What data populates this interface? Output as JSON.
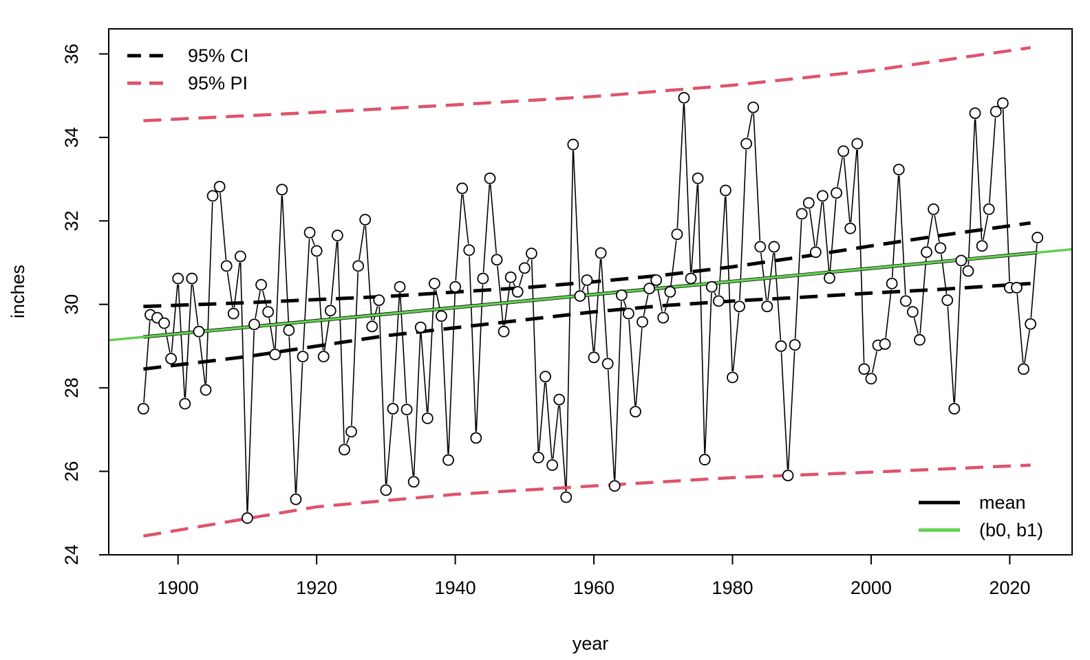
{
  "chart_data": {
    "type": "line",
    "xlabel": "year",
    "ylabel": "inches",
    "xlim": [
      1890,
      2029
    ],
    "ylim": [
      24,
      36.6
    ],
    "x_ticks": [
      1900,
      1920,
      1940,
      1960,
      1980,
      2000,
      2020
    ],
    "y_ticks": [
      24,
      26,
      28,
      30,
      32,
      34,
      36
    ],
    "grid": false,
    "x": [
      1895,
      1896,
      1897,
      1898,
      1899,
      1900,
      1901,
      1902,
      1903,
      1904,
      1905,
      1906,
      1907,
      1908,
      1909,
      1910,
      1911,
      1912,
      1913,
      1914,
      1915,
      1916,
      1917,
      1918,
      1919,
      1920,
      1921,
      1922,
      1923,
      1924,
      1925,
      1926,
      1927,
      1928,
      1929,
      1930,
      1931,
      1932,
      1933,
      1934,
      1935,
      1936,
      1937,
      1938,
      1939,
      1940,
      1941,
      1942,
      1943,
      1944,
      1945,
      1946,
      1947,
      1948,
      1949,
      1950,
      1951,
      1952,
      1953,
      1954,
      1955,
      1956,
      1957,
      1958,
      1959,
      1960,
      1961,
      1962,
      1963,
      1964,
      1965,
      1966,
      1967,
      1968,
      1969,
      1970,
      1971,
      1972,
      1973,
      1974,
      1975,
      1976,
      1977,
      1978,
      1979,
      1980,
      1981,
      1982,
      1983,
      1984,
      1985,
      1986,
      1987,
      1988,
      1989,
      1990,
      1991,
      1992,
      1993,
      1994,
      1995,
      1996,
      1997,
      1998,
      1999,
      2000,
      2001,
      2002,
      2003,
      2004,
      2005,
      2006,
      2007,
      2008,
      2009,
      2010,
      2011,
      2012,
      2013,
      2014,
      2015,
      2016,
      2017,
      2018,
      2019,
      2020,
      2021,
      2022,
      2023,
      2024
    ],
    "series": [
      {
        "name": "",
        "kind": "observations",
        "color": "#000000",
        "values": [
          27.5,
          29.75,
          29.68,
          29.55,
          28.7,
          30.62,
          27.62,
          30.62,
          29.35,
          27.95,
          32.6,
          32.82,
          30.92,
          29.78,
          31.15,
          24.88,
          29.52,
          30.47,
          29.82,
          28.8,
          32.75,
          29.38,
          25.33,
          28.75,
          31.72,
          31.28,
          28.75,
          29.85,
          31.65,
          26.52,
          26.95,
          30.92,
          32.03,
          29.47,
          30.1,
          25.55,
          27.5,
          30.42,
          27.48,
          25.75,
          29.45,
          27.27,
          30.5,
          29.72,
          26.27,
          30.42,
          32.78,
          31.3,
          26.8,
          30.62,
          33.02,
          31.07,
          29.35,
          30.65,
          30.3,
          30.87,
          31.22,
          26.33,
          28.27,
          26.15,
          27.72,
          25.38,
          33.83,
          30.2,
          30.58,
          28.73,
          31.23,
          28.58,
          25.65,
          30.22,
          29.78,
          27.43,
          29.58,
          30.38,
          30.58,
          29.68,
          30.3,
          31.68,
          34.95,
          30.62,
          33.02,
          26.28,
          30.42,
          30.08,
          32.73,
          28.25,
          29.95,
          33.85,
          34.72,
          31.38,
          29.95,
          31.38,
          29.0,
          25.9,
          29.03,
          32.17,
          32.43,
          31.25,
          32.6,
          30.63,
          32.67,
          33.67,
          31.82,
          33.85,
          28.45,
          28.22,
          29.02,
          29.05,
          30.5,
          33.23,
          30.08,
          29.82,
          29.15,
          31.25,
          32.28,
          31.35,
          30.1,
          27.5,
          31.05,
          30.8,
          34.58,
          31.4,
          32.28,
          34.62,
          34.82,
          30.4,
          30.4,
          28.45,
          29.53,
          31.6
        ]
      },
      {
        "name": "mean",
        "kind": "regression-mean",
        "color": "#000000",
        "x": [
          1895,
          2024
        ],
        "values": [
          29.22,
          31.24
        ]
      },
      {
        "name": "(b0, b1)",
        "kind": "abline",
        "color": "#61D04F",
        "x": [
          1890,
          2029
        ],
        "values": [
          29.14,
          31.32
        ]
      },
      {
        "name": "95% CI",
        "kind": "ci-upper",
        "color": "#000000",
        "x": [
          1895,
          1910,
          1930,
          1950,
          1960,
          1970,
          1980,
          1990,
          2000,
          2010,
          2023
        ],
        "values": [
          29.95,
          30.04,
          30.19,
          30.4,
          30.54,
          30.7,
          30.9,
          31.14,
          31.4,
          31.65,
          31.95
        ]
      },
      {
        "name": "95% CI",
        "kind": "ci-lower",
        "color": "#000000",
        "x": [
          1895,
          1910,
          1930,
          1950,
          1960,
          1970,
          1980,
          1990,
          2000,
          2010,
          2023
        ],
        "values": [
          28.45,
          28.75,
          29.25,
          29.63,
          29.82,
          29.97,
          30.08,
          30.17,
          30.27,
          30.36,
          30.5
        ]
      },
      {
        "name": "95% PI",
        "kind": "pi-upper",
        "color": "#DF536B",
        "x": [
          1895,
          1920,
          1940,
          1960,
          1980,
          2000,
          2023
        ],
        "values": [
          34.4,
          34.6,
          34.78,
          34.98,
          35.25,
          35.6,
          36.15
        ]
      },
      {
        "name": "95% PI",
        "kind": "pi-lower",
        "color": "#DF536B",
        "x": [
          1895,
          1920,
          1940,
          1960,
          1980,
          2000,
          2023
        ],
        "values": [
          24.45,
          25.15,
          25.45,
          25.65,
          25.85,
          25.98,
          26.15
        ]
      }
    ],
    "legend_top_left": [
      {
        "label": "95% CI",
        "color": "#000000",
        "dashed": true
      },
      {
        "label": "95% PI",
        "color": "#DF536B",
        "dashed": true
      }
    ],
    "legend_bottom_right": [
      {
        "label": "mean",
        "color": "#000000",
        "dashed": false
      },
      {
        "label": "(b0, b1)",
        "color": "#61D04F",
        "dashed": false
      }
    ]
  }
}
